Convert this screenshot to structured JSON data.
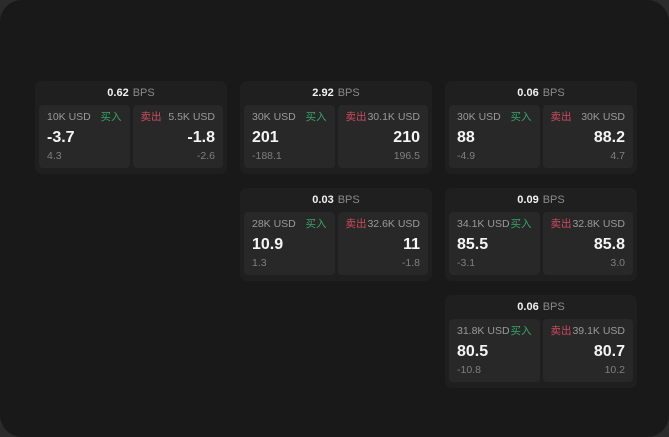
{
  "labels": {
    "bps_unit": "BPS",
    "buy": "买入",
    "sell": "卖出"
  },
  "colors": {
    "buy": "#35a56a",
    "sell": "#cf4a5e",
    "panel_bg": "#191919",
    "card_bg": "#1f1f1f",
    "tile_bg": "#282828"
  },
  "cards": [
    {
      "bps": "0.62",
      "col": 1,
      "row": 1,
      "buy": {
        "amount": "10K USD",
        "price": "-3.7",
        "delta": "4.3"
      },
      "sell": {
        "amount": "5.5K USD",
        "price": "-1.8",
        "delta": "-2.6"
      }
    },
    {
      "bps": "2.92",
      "col": 2,
      "row": 1,
      "buy": {
        "amount": "30K USD",
        "price": "201",
        "delta": "-188.1"
      },
      "sell": {
        "amount": "30.1K USD",
        "price": "210",
        "delta": "196.5"
      }
    },
    {
      "bps": "0.06",
      "col": 3,
      "row": 1,
      "buy": {
        "amount": "30K USD",
        "price": "88",
        "delta": "-4.9"
      },
      "sell": {
        "amount": "30K USD",
        "price": "88.2",
        "delta": "4.7"
      }
    },
    {
      "bps": "0.03",
      "col": 2,
      "row": 2,
      "buy": {
        "amount": "28K USD",
        "price": "10.9",
        "delta": "1.3"
      },
      "sell": {
        "amount": "32.6K USD",
        "price": "11",
        "delta": "-1.8"
      }
    },
    {
      "bps": "0.09",
      "col": 3,
      "row": 2,
      "buy": {
        "amount": "34.1K USD",
        "price": "85.5",
        "delta": "-3.1"
      },
      "sell": {
        "amount": "32.8K USD",
        "price": "85.8",
        "delta": "3.0"
      }
    },
    {
      "bps": "0.06",
      "col": 3,
      "row": 3,
      "buy": {
        "amount": "31.8K USD",
        "price": "80.5",
        "delta": "-10.8"
      },
      "sell": {
        "amount": "39.1K USD",
        "price": "80.7",
        "delta": "10.2"
      }
    }
  ]
}
